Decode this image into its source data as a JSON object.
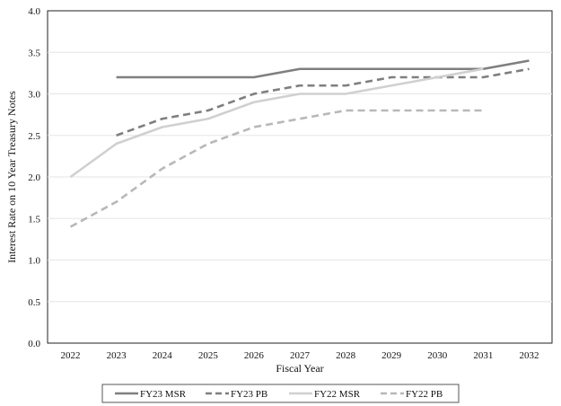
{
  "chart_data": {
    "type": "line",
    "title": "",
    "xlabel": "Fiscal Year",
    "ylabel": "Interest Rate on 10 Year Treasury Notes",
    "categories": [
      "2022",
      "2023",
      "2024",
      "2025",
      "2026",
      "2027",
      "2028",
      "2029",
      "2030",
      "2031",
      "2032"
    ],
    "y_ticks": [
      "0.0",
      "0.5",
      "1.0",
      "1.5",
      "2.0",
      "2.5",
      "3.0",
      "3.5",
      "4.0"
    ],
    "ylim": [
      0,
      4
    ],
    "grid": true,
    "legend_position": "bottom",
    "series": [
      {
        "name": "FY23 MSR",
        "color": "#7f7f7f",
        "dash": "solid",
        "values": [
          null,
          3.2,
          3.2,
          3.2,
          3.2,
          3.3,
          3.3,
          3.3,
          3.3,
          3.3,
          3.4
        ]
      },
      {
        "name": "FY23 PB",
        "color": "#7f7f7f",
        "dash": "dashed",
        "values": [
          null,
          2.5,
          2.7,
          2.8,
          3.0,
          3.1,
          3.1,
          3.2,
          3.2,
          3.2,
          3.3
        ]
      },
      {
        "name": "FY22 MSR",
        "color": "#d0d0d0",
        "dash": "solid",
        "values": [
          2.0,
          2.4,
          2.6,
          2.7,
          2.9,
          3.0,
          3.0,
          3.1,
          3.2,
          3.3,
          null
        ]
      },
      {
        "name": "FY22 PB",
        "color": "#b8b8b8",
        "dash": "dashed",
        "values": [
          1.4,
          1.7,
          2.1,
          2.4,
          2.6,
          2.7,
          2.8,
          2.8,
          2.8,
          2.8,
          null
        ]
      }
    ]
  }
}
